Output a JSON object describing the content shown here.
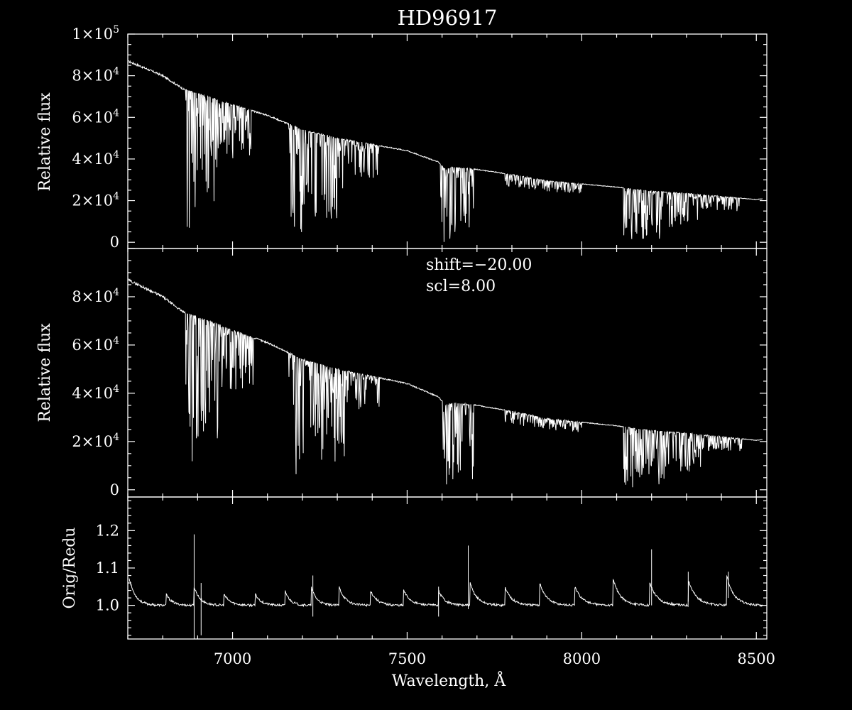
{
  "colors": {
    "background": "#000000",
    "foreground": "#ffffff"
  },
  "chart_data": [
    {
      "type": "line",
      "panel": "top",
      "title": "HD96917",
      "xlabel": "",
      "ylabel": "Relative flux",
      "xlim": [
        6700,
        8530
      ],
      "ylim": [
        -3000,
        100000
      ],
      "ytick_labels": [
        {
          "value": 100000,
          "m": "1",
          "e": "5"
        },
        {
          "value": 80000,
          "m": "8",
          "e": "4"
        },
        {
          "value": 60000,
          "m": "6",
          "e": "4"
        },
        {
          "value": 40000,
          "m": "4",
          "e": "4"
        },
        {
          "value": 20000,
          "m": "2",
          "e": "4"
        },
        {
          "value": 0,
          "m": "0",
          "e": ""
        }
      ],
      "continuum": [
        [
          6700,
          87000
        ],
        [
          6730,
          85000
        ],
        [
          6800,
          80000
        ],
        [
          6860,
          73500
        ],
        [
          6900,
          71500
        ],
        [
          7000,
          66000
        ],
        [
          7100,
          61000
        ],
        [
          7200,
          54000
        ],
        [
          7300,
          50000
        ],
        [
          7400,
          47000
        ],
        [
          7500,
          44000
        ],
        [
          7590,
          38500
        ],
        [
          7610,
          35000
        ],
        [
          7630,
          36000
        ],
        [
          7700,
          35000
        ],
        [
          7800,
          32500
        ],
        [
          7900,
          29500
        ],
        [
          8000,
          28000
        ],
        [
          8100,
          26500
        ],
        [
          8200,
          24500
        ],
        [
          8300,
          23500
        ],
        [
          8400,
          22000
        ],
        [
          8500,
          20500
        ],
        [
          8520,
          21000
        ]
      ],
      "absorption_bands": [
        {
          "from": 6865,
          "to": 6895,
          "depth": 0.98
        },
        {
          "from": 6895,
          "to": 6960,
          "depth": 0.75
        },
        {
          "from": 6960,
          "to": 7060,
          "depth": 0.4
        },
        {
          "from": 7160,
          "to": 7200,
          "depth": 0.97
        },
        {
          "from": 7200,
          "to": 7320,
          "depth": 0.8
        },
        {
          "from": 7320,
          "to": 7420,
          "depth": 0.35
        },
        {
          "from": 7595,
          "to": 7640,
          "depth": 1.0
        },
        {
          "from": 7640,
          "to": 7690,
          "depth": 0.9
        },
        {
          "from": 7780,
          "to": 8000,
          "depth": 0.18
        },
        {
          "from": 8120,
          "to": 8240,
          "depth": 0.97
        },
        {
          "from": 8240,
          "to": 8340,
          "depth": 0.7
        },
        {
          "from": 8340,
          "to": 8460,
          "depth": 0.3
        }
      ]
    },
    {
      "type": "line",
      "panel": "middle",
      "xlabel": "",
      "ylabel": "Relative flux",
      "xlim": [
        6700,
        8530
      ],
      "ylim": [
        -3000,
        100000
      ],
      "annotations": [
        "shift=−20.00",
        "scl=8.00"
      ],
      "ytick_labels": [
        {
          "value": 80000,
          "m": "8",
          "e": "4"
        },
        {
          "value": 60000,
          "m": "6",
          "e": "4"
        },
        {
          "value": 40000,
          "m": "4",
          "e": "4"
        },
        {
          "value": 20000,
          "m": "2",
          "e": "4"
        },
        {
          "value": 0,
          "m": "0",
          "e": ""
        }
      ],
      "continuum": [
        [
          6700,
          87000
        ],
        [
          6730,
          85000
        ],
        [
          6800,
          80000
        ],
        [
          6860,
          73500
        ],
        [
          6900,
          71500
        ],
        [
          7000,
          66000
        ],
        [
          7100,
          61000
        ],
        [
          7200,
          54000
        ],
        [
          7300,
          50000
        ],
        [
          7400,
          47000
        ],
        [
          7500,
          44000
        ],
        [
          7590,
          38500
        ],
        [
          7610,
          35000
        ],
        [
          7630,
          36000
        ],
        [
          7700,
          35000
        ],
        [
          7800,
          32500
        ],
        [
          7900,
          29500
        ],
        [
          8000,
          28000
        ],
        [
          8100,
          26500
        ],
        [
          8200,
          24500
        ],
        [
          8300,
          23500
        ],
        [
          8400,
          22000
        ],
        [
          8500,
          20500
        ],
        [
          8520,
          21000
        ]
      ],
      "absorption_bands": [
        {
          "from": 6865,
          "to": 6895,
          "depth": 0.98
        },
        {
          "from": 6895,
          "to": 6960,
          "depth": 0.72
        },
        {
          "from": 6960,
          "to": 7060,
          "depth": 0.38
        },
        {
          "from": 7160,
          "to": 7200,
          "depth": 0.95
        },
        {
          "from": 7200,
          "to": 7320,
          "depth": 0.78
        },
        {
          "from": 7320,
          "to": 7420,
          "depth": 0.33
        },
        {
          "from": 7595,
          "to": 7640,
          "depth": 1.0
        },
        {
          "from": 7640,
          "to": 7690,
          "depth": 0.9
        },
        {
          "from": 7780,
          "to": 8000,
          "depth": 0.16
        },
        {
          "from": 8120,
          "to": 8240,
          "depth": 0.96
        },
        {
          "from": 8240,
          "to": 8340,
          "depth": 0.68
        },
        {
          "from": 8340,
          "to": 8460,
          "depth": 0.28
        }
      ]
    },
    {
      "type": "line",
      "panel": "bottom",
      "xlabel": "Wavelength, Å",
      "ylabel": "Orig/Redu",
      "xlim": [
        6700,
        8530
      ],
      "ylim": [
        0.91,
        1.29
      ],
      "x_tick_labels": [
        "7000",
        "7500",
        "8000",
        "8500"
      ],
      "x_ticks": [
        7000,
        7500,
        8000,
        8500
      ],
      "ytick_labels": [
        "1.2",
        "1.1",
        "1.0"
      ],
      "y_ticks": [
        1.2,
        1.1,
        1.0
      ],
      "baseline": 1.0,
      "period_starts": [
        6720,
        6810,
        6890,
        6975,
        7065,
        7150,
        7225,
        7305,
        7395,
        7490,
        7590,
        7680,
        7780,
        7880,
        7980,
        8090,
        8195,
        8305,
        8415,
        8520
      ],
      "period_peaks": [
        1.03,
        1.03,
        1.05,
        1.03,
        1.03,
        1.04,
        1.05,
        1.05,
        1.04,
        1.04,
        1.04,
        1.06,
        1.05,
        1.06,
        1.05,
        1.07,
        1.06,
        1.07,
        1.08
      ],
      "spikes": [
        {
          "x": 6890,
          "hi": 1.19,
          "lo": 0.91
        },
        {
          "x": 6910,
          "hi": 1.06,
          "lo": 0.92
        },
        {
          "x": 7230,
          "hi": 1.08,
          "lo": 0.97
        },
        {
          "x": 7590,
          "hi": 1.05,
          "lo": 0.97
        },
        {
          "x": 7675,
          "hi": 1.16,
          "lo": 0.99
        },
        {
          "x": 8200,
          "hi": 1.15,
          "lo": 1.0
        },
        {
          "x": 8305,
          "hi": 1.09,
          "lo": 1.01
        },
        {
          "x": 8420,
          "hi": 1.09,
          "lo": 1.02
        }
      ]
    }
  ]
}
